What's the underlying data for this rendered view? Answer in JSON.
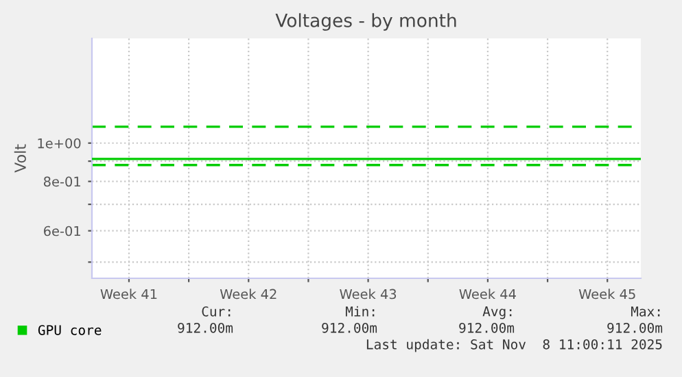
{
  "chart_data": {
    "type": "line",
    "title": "Voltages - by month",
    "ylabel": "Volt",
    "x": [
      "2025-10-07T08:00",
      "2025-11-08T11:00"
    ],
    "series": [
      {
        "name": "GPU core",
        "color": "#00cc00",
        "values": [
          0.912,
          0.912
        ]
      }
    ],
    "log": true,
    "ylim": [
      0.455,
      1.84
    ],
    "yticks": [
      {
        "value": 0.5,
        "label": null
      },
      {
        "value": 0.6,
        "label": "6e-01"
      },
      {
        "value": 0.7,
        "label": null
      },
      {
        "value": 0.8,
        "label": "8e-01"
      },
      {
        "value": 0.9,
        "label": null
      },
      {
        "value": 1,
        "label": "1e+00"
      }
    ],
    "xlim": [
      "2025-10-07T08:00",
      "2025-11-08T11:00"
    ],
    "xticks": [
      {
        "value": "2025-10-09T12:00",
        "label": "Week 41"
      },
      {
        "value": "2025-10-13",
        "label": null
      },
      {
        "value": "2025-10-16T12:00",
        "label": "Week 42"
      },
      {
        "value": "2025-10-20",
        "label": null
      },
      {
        "value": "2025-10-23T12:00",
        "label": "Week 43"
      },
      {
        "value": "2025-10-27",
        "label": null
      },
      {
        "value": "2025-10-30T12:00",
        "label": "Week 44"
      },
      {
        "value": "2025-11-03",
        "label": null
      },
      {
        "value": "2025-11-06T12:00",
        "label": "Week 45"
      }
    ],
    "ref_lines": [
      {
        "axis": "y",
        "value": 1.1,
        "color": "#00cc00",
        "line_style": "dashed"
      },
      {
        "axis": "y",
        "value": 0.88,
        "color": "#00cc00",
        "line_style": "dashed"
      }
    ],
    "grid": true,
    "legend": "bottom left",
    "line_style": "solid",
    "marker": "none",
    "annotations": [
      "Cur:",
      "Min:",
      "Avg:",
      "Max:",
      "912.00m",
      "912.00m",
      "912.00m",
      "912.00m",
      "Last update: Sat Nov  8 11:00:11 2025"
    ]
  }
}
